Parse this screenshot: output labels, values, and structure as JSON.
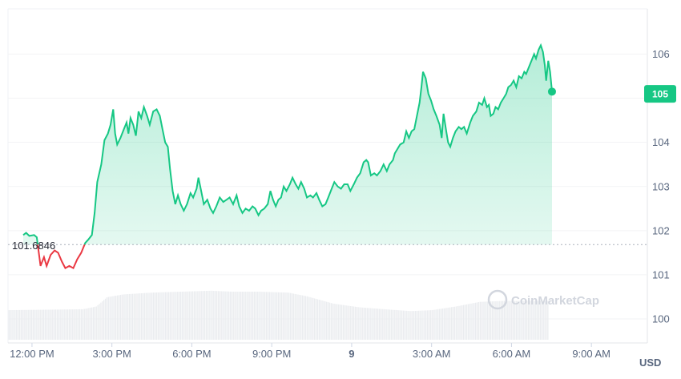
{
  "chart_data": {
    "type": "area",
    "currency_label": "USD",
    "watermark_text": "CoinMarketCap",
    "y_ticks": [
      "100",
      "101",
      "102",
      "103",
      "104",
      "105",
      "106"
    ],
    "ylim": [
      99.6,
      106.5
    ],
    "x_ticks": [
      {
        "h": 12,
        "label": "12:00 PM",
        "bold": false
      },
      {
        "h": 15,
        "label": "3:00 PM",
        "bold": false
      },
      {
        "h": 18,
        "label": "6:00 PM",
        "bold": false
      },
      {
        "h": 21,
        "label": "9:00 PM",
        "bold": false
      },
      {
        "h": 24,
        "label": "9",
        "bold": true
      },
      {
        "h": 27,
        "label": "3:00 AM",
        "bold": false
      },
      {
        "h": 30,
        "label": "6:00 AM",
        "bold": false
      },
      {
        "h": 33,
        "label": "9:00 AM",
        "bold": false
      }
    ],
    "xlim": [
      11.1,
      35.1
    ],
    "reference_price": 101.6846,
    "reference_label": "101.6846",
    "current_price_label": "105",
    "current_price": 105.1,
    "colors": {
      "up": "#16c784",
      "down": "#ea3943",
      "volume": "#eaecef",
      "ref_line": "#aab0ba",
      "grid": "#f2f3f5"
    },
    "series": [
      {
        "values": [
          [
            11.67,
            101.9
          ],
          [
            11.78,
            101.95
          ],
          [
            11.9,
            101.88
          ],
          [
            12.08,
            101.9
          ],
          [
            12.18,
            101.85
          ],
          [
            12.32,
            101.2
          ],
          [
            12.45,
            101.4
          ],
          [
            12.55,
            101.2
          ],
          [
            12.7,
            101.45
          ],
          [
            12.85,
            101.55
          ],
          [
            12.98,
            101.5
          ],
          [
            13.12,
            101.3
          ],
          [
            13.25,
            101.15
          ],
          [
            13.4,
            101.2
          ],
          [
            13.55,
            101.15
          ],
          [
            13.7,
            101.35
          ],
          [
            13.85,
            101.5
          ],
          [
            14.0,
            101.72
          ],
          [
            14.12,
            101.8
          ],
          [
            14.25,
            101.9
          ],
          [
            14.35,
            102.4
          ],
          [
            14.45,
            103.1
          ],
          [
            14.6,
            103.5
          ],
          [
            14.72,
            104.05
          ],
          [
            14.85,
            104.2
          ],
          [
            14.95,
            104.4
          ],
          [
            15.05,
            104.75
          ],
          [
            15.12,
            104.2
          ],
          [
            15.2,
            103.95
          ],
          [
            15.32,
            104.1
          ],
          [
            15.45,
            104.3
          ],
          [
            15.55,
            104.45
          ],
          [
            15.62,
            104.2
          ],
          [
            15.7,
            104.55
          ],
          [
            15.8,
            104.4
          ],
          [
            15.9,
            104.15
          ],
          [
            16.0,
            104.7
          ],
          [
            16.1,
            104.55
          ],
          [
            16.2,
            104.8
          ],
          [
            16.32,
            104.6
          ],
          [
            16.42,
            104.4
          ],
          [
            16.55,
            104.7
          ],
          [
            16.68,
            104.75
          ],
          [
            16.8,
            104.6
          ],
          [
            16.9,
            104.3
          ],
          [
            17.0,
            104.0
          ],
          [
            17.1,
            103.9
          ],
          [
            17.18,
            103.4
          ],
          [
            17.28,
            102.9
          ],
          [
            17.38,
            102.6
          ],
          [
            17.48,
            102.8
          ],
          [
            17.58,
            102.6
          ],
          [
            17.7,
            102.45
          ],
          [
            17.82,
            102.6
          ],
          [
            17.95,
            102.85
          ],
          [
            18.05,
            102.75
          ],
          [
            18.18,
            102.95
          ],
          [
            18.25,
            103.2
          ],
          [
            18.35,
            102.9
          ],
          [
            18.45,
            102.6
          ],
          [
            18.58,
            102.7
          ],
          [
            18.7,
            102.5
          ],
          [
            18.8,
            102.4
          ],
          [
            18.92,
            102.55
          ],
          [
            19.05,
            102.75
          ],
          [
            19.18,
            102.65
          ],
          [
            19.3,
            102.7
          ],
          [
            19.42,
            102.75
          ],
          [
            19.55,
            102.6
          ],
          [
            19.68,
            102.8
          ],
          [
            19.78,
            102.55
          ],
          [
            19.9,
            102.4
          ],
          [
            20.02,
            102.5
          ],
          [
            20.15,
            102.45
          ],
          [
            20.28,
            102.55
          ],
          [
            20.38,
            102.5
          ],
          [
            20.5,
            102.35
          ],
          [
            20.6,
            102.45
          ],
          [
            20.72,
            102.5
          ],
          [
            20.85,
            102.6
          ],
          [
            20.95,
            102.9
          ],
          [
            21.05,
            102.7
          ],
          [
            21.15,
            102.55
          ],
          [
            21.25,
            102.7
          ],
          [
            21.35,
            102.75
          ],
          [
            21.45,
            103.0
          ],
          [
            21.55,
            102.9
          ],
          [
            21.68,
            103.05
          ],
          [
            21.78,
            103.2
          ],
          [
            21.9,
            103.05
          ],
          [
            22.0,
            102.95
          ],
          [
            22.1,
            103.1
          ],
          [
            22.22,
            102.95
          ],
          [
            22.32,
            102.75
          ],
          [
            22.45,
            102.8
          ],
          [
            22.55,
            102.75
          ],
          [
            22.68,
            102.85
          ],
          [
            22.78,
            102.7
          ],
          [
            22.9,
            102.55
          ],
          [
            23.02,
            102.6
          ],
          [
            23.12,
            102.75
          ],
          [
            23.25,
            102.95
          ],
          [
            23.35,
            103.1
          ],
          [
            23.48,
            103.0
          ],
          [
            23.6,
            102.95
          ],
          [
            23.72,
            103.05
          ],
          [
            23.85,
            103.05
          ],
          [
            23.95,
            102.9
          ],
          [
            24.08,
            103.05
          ],
          [
            24.2,
            103.2
          ],
          [
            24.32,
            103.3
          ],
          [
            24.45,
            103.55
          ],
          [
            24.55,
            103.6
          ],
          [
            24.62,
            103.55
          ],
          [
            24.72,
            103.25
          ],
          [
            24.85,
            103.3
          ],
          [
            24.95,
            103.25
          ],
          [
            25.08,
            103.35
          ],
          [
            25.2,
            103.5
          ],
          [
            25.32,
            103.35
          ],
          [
            25.42,
            103.5
          ],
          [
            25.55,
            103.6
          ],
          [
            25.62,
            103.75
          ],
          [
            25.72,
            103.85
          ],
          [
            25.82,
            103.95
          ],
          [
            25.95,
            104.0
          ],
          [
            26.05,
            104.25
          ],
          [
            26.15,
            104.1
          ],
          [
            26.25,
            104.25
          ],
          [
            26.35,
            104.3
          ],
          [
            26.45,
            104.6
          ],
          [
            26.55,
            104.9
          ],
          [
            26.62,
            105.25
          ],
          [
            26.68,
            105.6
          ],
          [
            26.78,
            105.45
          ],
          [
            26.88,
            105.1
          ],
          [
            26.98,
            104.95
          ],
          [
            27.08,
            104.75
          ],
          [
            27.18,
            104.6
          ],
          [
            27.3,
            104.4
          ],
          [
            27.38,
            104.1
          ],
          [
            27.45,
            104.65
          ],
          [
            27.55,
            104.25
          ],
          [
            27.62,
            104.0
          ],
          [
            27.7,
            103.9
          ],
          [
            27.8,
            104.1
          ],
          [
            27.9,
            104.25
          ],
          [
            28.02,
            104.35
          ],
          [
            28.12,
            104.3
          ],
          [
            28.22,
            104.35
          ],
          [
            28.32,
            104.2
          ],
          [
            28.45,
            104.45
          ],
          [
            28.55,
            104.6
          ],
          [
            28.68,
            104.7
          ],
          [
            28.78,
            104.9
          ],
          [
            28.9,
            104.85
          ],
          [
            28.98,
            105.0
          ],
          [
            29.08,
            104.8
          ],
          [
            29.15,
            104.85
          ],
          [
            29.22,
            104.6
          ],
          [
            29.32,
            104.65
          ],
          [
            29.4,
            104.8
          ],
          [
            29.5,
            104.75
          ],
          [
            29.6,
            104.9
          ],
          [
            29.7,
            105.0
          ],
          [
            29.8,
            105.1
          ],
          [
            29.88,
            105.25
          ],
          [
            29.98,
            105.3
          ],
          [
            30.08,
            105.4
          ],
          [
            30.18,
            105.25
          ],
          [
            30.28,
            105.5
          ],
          [
            30.38,
            105.45
          ],
          [
            30.48,
            105.6
          ],
          [
            30.55,
            105.55
          ],
          [
            30.65,
            105.7
          ],
          [
            30.75,
            105.85
          ],
          [
            30.85,
            106.0
          ],
          [
            30.92,
            105.9
          ],
          [
            31.02,
            106.1
          ],
          [
            31.1,
            106.2
          ],
          [
            31.18,
            106.05
          ],
          [
            31.25,
            105.75
          ],
          [
            31.3,
            105.4
          ],
          [
            31.38,
            105.85
          ],
          [
            31.45,
            105.6
          ],
          [
            31.52,
            105.15
          ]
        ]
      }
    ],
    "volume": [
      [
        11.12,
        0.32
      ],
      [
        13.9,
        0.33
      ],
      [
        14.4,
        0.36
      ],
      [
        14.8,
        0.46
      ],
      [
        15.4,
        0.49
      ],
      [
        16.5,
        0.51
      ],
      [
        17.6,
        0.52
      ],
      [
        18.7,
        0.53
      ],
      [
        19.5,
        0.52
      ],
      [
        20.5,
        0.52
      ],
      [
        21.6,
        0.51
      ],
      [
        22.3,
        0.47
      ],
      [
        23.3,
        0.39
      ],
      [
        24.3,
        0.35
      ],
      [
        25.2,
        0.33
      ],
      [
        26.2,
        0.31
      ],
      [
        27.0,
        0.32
      ],
      [
        27.9,
        0.36
      ],
      [
        28.8,
        0.41
      ],
      [
        29.7,
        0.42
      ],
      [
        30.6,
        0.42
      ],
      [
        31.4,
        0.42
      ]
    ]
  }
}
